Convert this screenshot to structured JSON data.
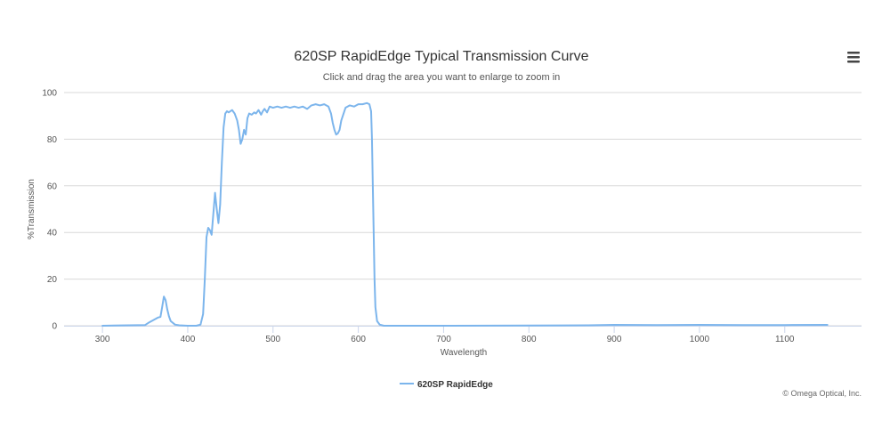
{
  "header": {
    "title": "620SP RapidEdge Typical Transmission Curve",
    "subtitle": "Click and drag the area you want to enlarge to zoom in"
  },
  "menu": {
    "icon": "hamburger-menu-icon"
  },
  "credits": "© Omega Optical, Inc.",
  "chart_data": {
    "type": "line",
    "title": "620SP RapidEdge Typical Transmission Curve",
    "subtitle": "Click and drag the area you want to enlarge to zoom in",
    "xlabel": "Wavelength",
    "ylabel": "%Transmission",
    "xlim": [
      255,
      1190
    ],
    "ylim": [
      0,
      100
    ],
    "xticks": [
      300,
      400,
      500,
      600,
      700,
      800,
      900,
      1000,
      1100
    ],
    "yticks": [
      0,
      20,
      40,
      60,
      80,
      100
    ],
    "grid": "horizontal",
    "legend": "bottom-center",
    "series": [
      {
        "name": "620SP RapidEdge",
        "color": "#7cb5ec",
        "x": [
          300,
          350,
          355,
          360,
          365,
          368,
          370,
          372,
          374,
          376,
          378,
          380,
          385,
          390,
          400,
          410,
          415,
          418,
          420,
          422,
          424,
          426,
          428,
          430,
          432,
          434,
          436,
          438,
          440,
          442,
          444,
          446,
          448,
          450,
          452,
          455,
          458,
          460,
          462,
          464,
          466,
          468,
          470,
          472,
          475,
          478,
          480,
          483,
          486,
          488,
          490,
          493,
          496,
          500,
          505,
          510,
          515,
          520,
          525,
          530,
          535,
          540,
          545,
          550,
          555,
          560,
          565,
          568,
          570,
          572,
          574,
          576,
          578,
          580,
          585,
          590,
          595,
          600,
          605,
          610,
          613,
          615,
          616,
          617,
          618,
          619,
          620,
          622,
          625,
          630,
          700,
          800,
          870,
          900,
          950,
          1000,
          1050,
          1100,
          1150
        ],
        "y": [
          0,
          0.3,
          1.5,
          2.5,
          3.5,
          3.8,
          8,
          12.5,
          11,
          7,
          4,
          2,
          0.5,
          0.2,
          0,
          0,
          0.5,
          5,
          20,
          38,
          42,
          41,
          39,
          48,
          57,
          50,
          44,
          52,
          70,
          85,
          91,
          92,
          91.5,
          92,
          92.5,
          91,
          88,
          84,
          78,
          80,
          84,
          82,
          89,
          91,
          90.5,
          91.5,
          91,
          92.5,
          90.5,
          92,
          93,
          91.5,
          94,
          93.5,
          94,
          93.5,
          94,
          93.5,
          94,
          93.5,
          94,
          93,
          94.5,
          95,
          94.5,
          95,
          94,
          91,
          87,
          84,
          82,
          82.5,
          84,
          88,
          93.5,
          94.5,
          94,
          95,
          95,
          95.5,
          95,
          92,
          80,
          60,
          40,
          20,
          8,
          2,
          0.5,
          0,
          0,
          0.1,
          0.2,
          0.4,
          0.3,
          0.4,
          0.3,
          0.3,
          0.4
        ]
      }
    ]
  }
}
